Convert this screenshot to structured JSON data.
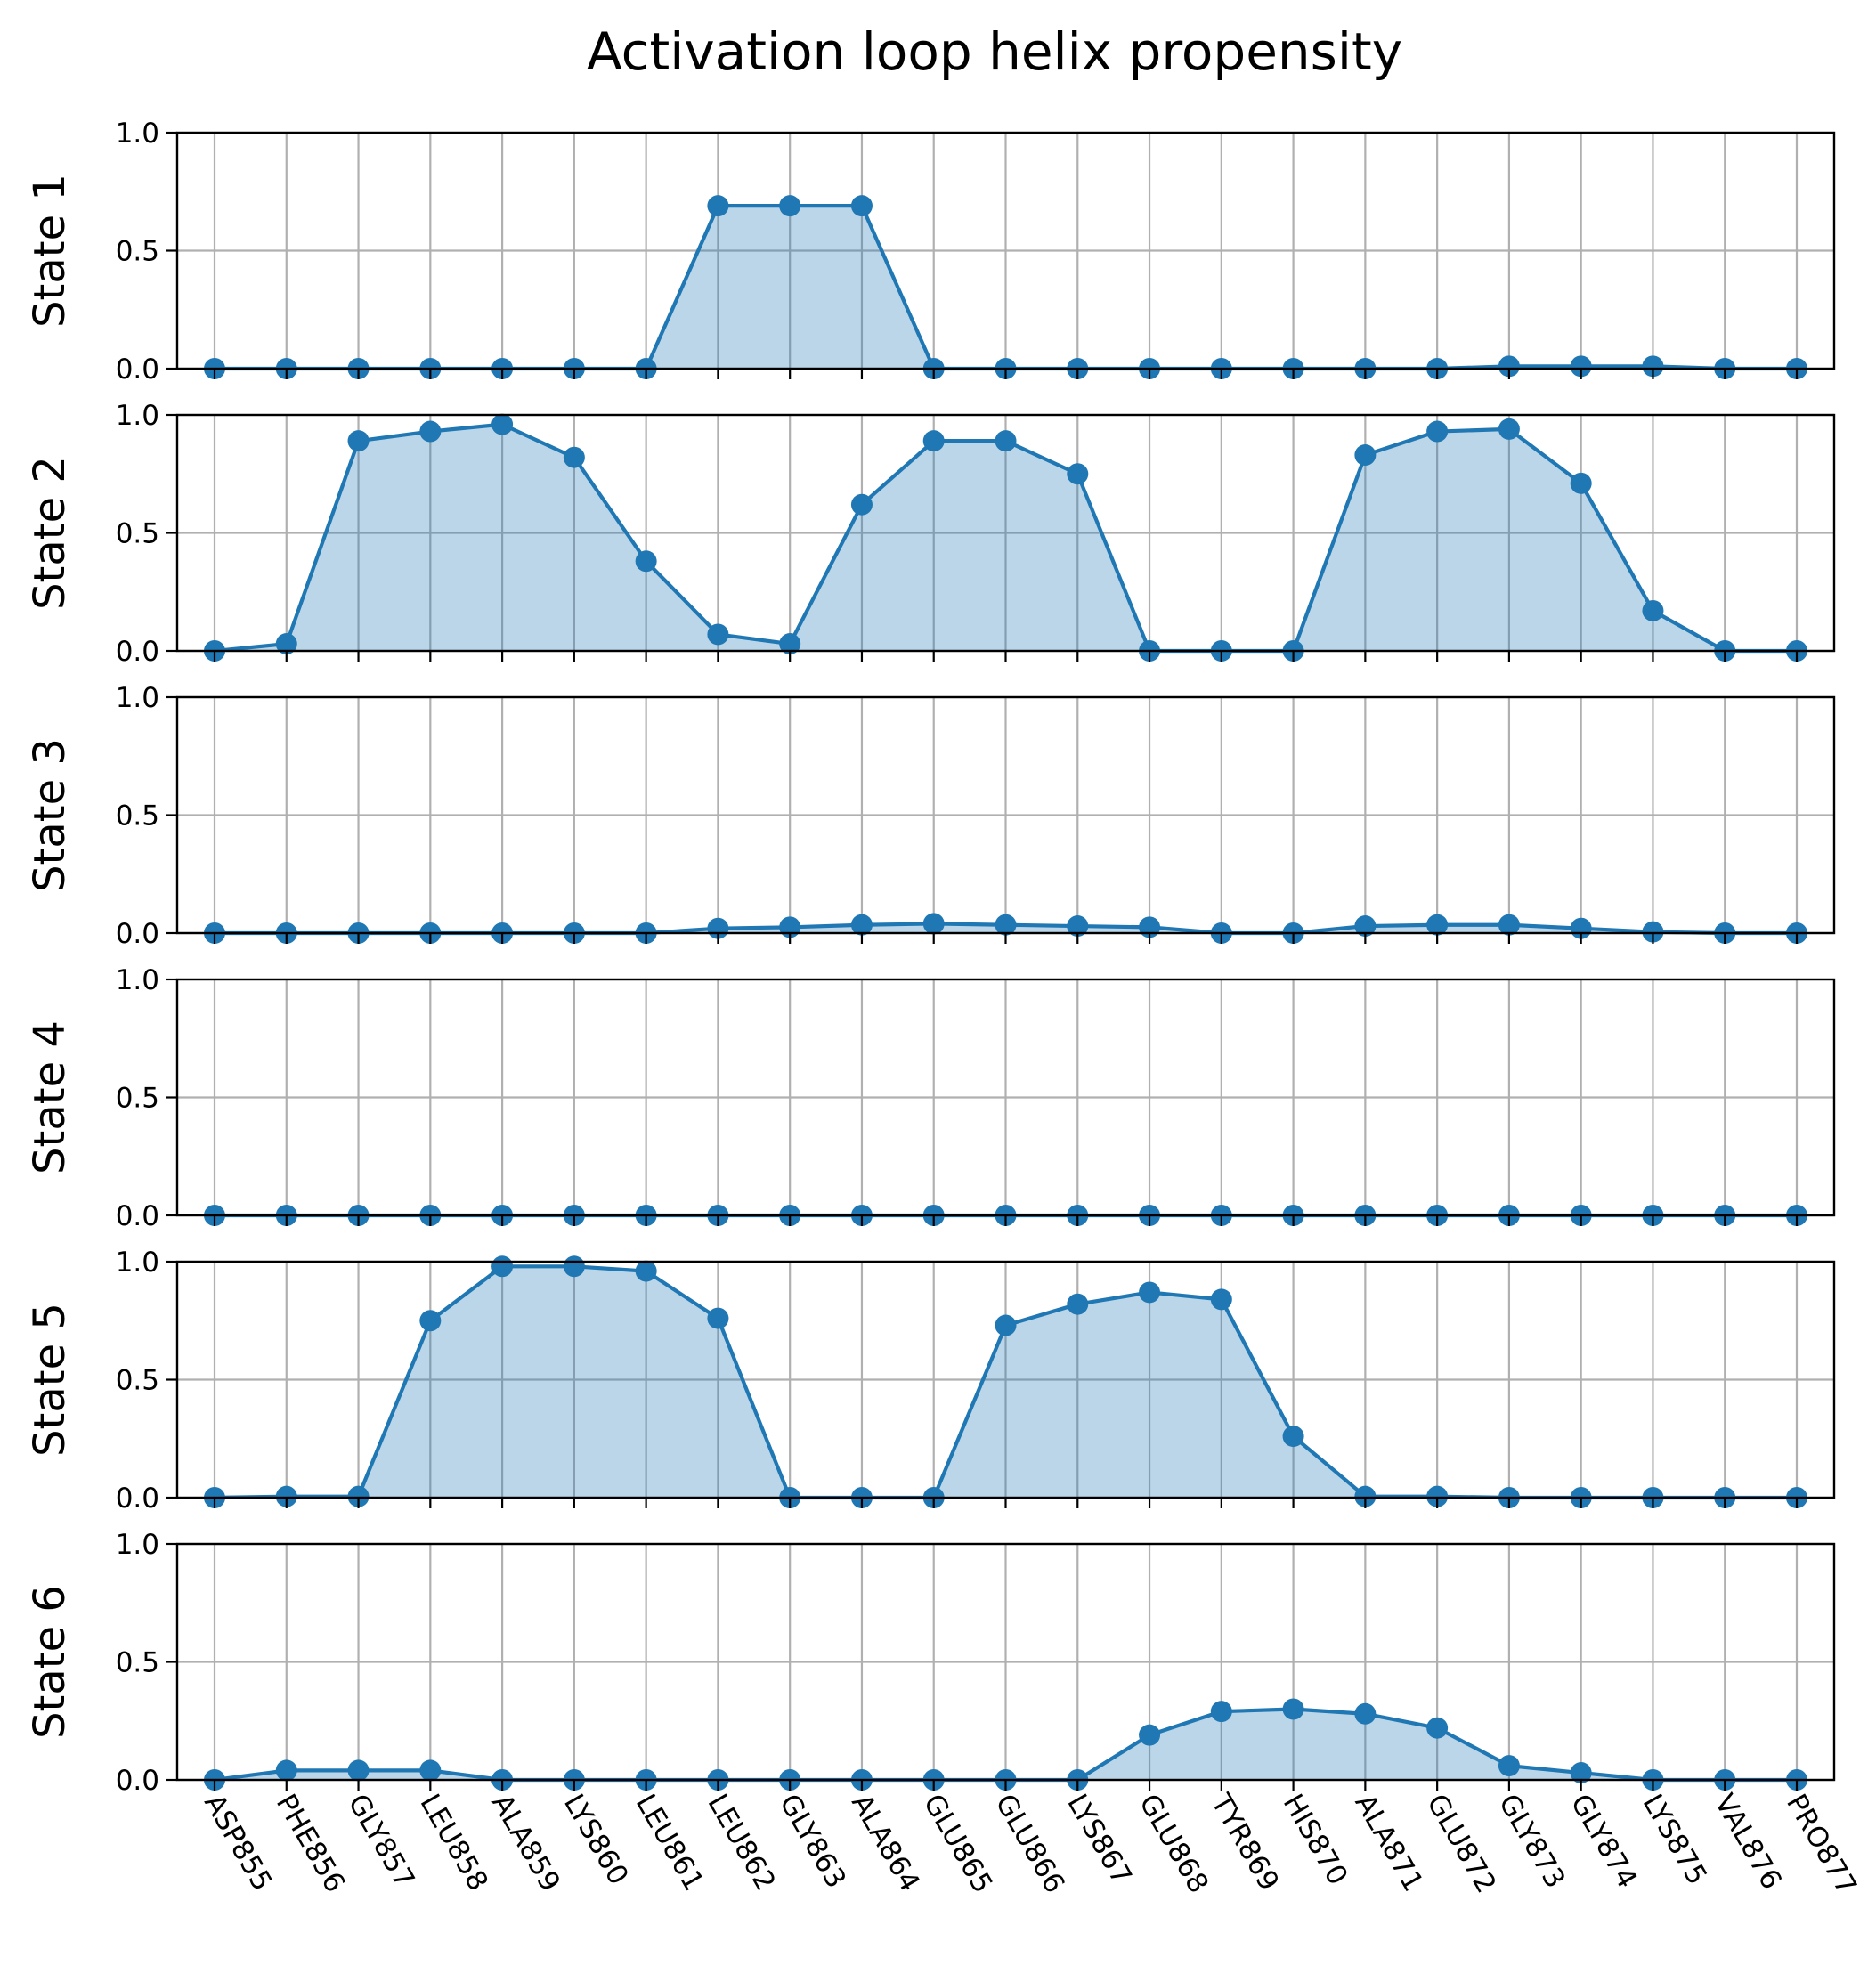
{
  "chart_data": {
    "type": "area",
    "title": "Activation loop helix propensity",
    "xlabel": "",
    "categories": [
      "ASP855",
      "PHE856",
      "GLY857",
      "LEU858",
      "ALA859",
      "LYS860",
      "LEU861",
      "LEU862",
      "GLY863",
      "ALA864",
      "GLU865",
      "GLU866",
      "LYS867",
      "GLU868",
      "TYR869",
      "HIS870",
      "ALA871",
      "GLU872",
      "GLY873",
      "GLY874",
      "LYS875",
      "VAL876",
      "PRO877"
    ],
    "ylim": [
      0,
      1
    ],
    "yticks": [
      "0.0",
      "0.5",
      "1.0"
    ],
    "grid": true,
    "markers": true,
    "colors": {
      "line": "#1f77b4",
      "fill": "#1f77b4",
      "fill_opacity": 0.3
    },
    "series": [
      {
        "ylabel": "State 1",
        "values": [
          0.0,
          0.0,
          0.0,
          0.0,
          0.0,
          0.0,
          0.0,
          0.69,
          0.69,
          0.69,
          0.0,
          0.0,
          0.0,
          0.0,
          0.0,
          0.0,
          0.0,
          0.0,
          0.01,
          0.01,
          0.01,
          0.0,
          0.0
        ]
      },
      {
        "ylabel": "State 2",
        "values": [
          0.0,
          0.03,
          0.89,
          0.93,
          0.96,
          0.82,
          0.38,
          0.07,
          0.03,
          0.62,
          0.89,
          0.89,
          0.75,
          0.0,
          0.0,
          0.0,
          0.83,
          0.93,
          0.94,
          0.71,
          0.17,
          0.0,
          0.0
        ]
      },
      {
        "ylabel": "State 3",
        "values": [
          0.0,
          0.0,
          0.0,
          0.0,
          0.0,
          0.0,
          0.0,
          0.02,
          0.025,
          0.035,
          0.04,
          0.035,
          0.03,
          0.025,
          0.0,
          0.0,
          0.03,
          0.035,
          0.035,
          0.02,
          0.005,
          0.0,
          0.0
        ]
      },
      {
        "ylabel": "State 4",
        "values": [
          0.0,
          0.0,
          0.0,
          0.0,
          0.0,
          0.0,
          0.0,
          0.0,
          0.0,
          0.0,
          0.0,
          0.0,
          0.0,
          0.0,
          0.0,
          0.0,
          0.0,
          0.0,
          0.0,
          0.0,
          0.0,
          0.0,
          0.0
        ]
      },
      {
        "ylabel": "State 5",
        "values": [
          0.0,
          0.005,
          0.005,
          0.75,
          0.98,
          0.98,
          0.96,
          0.76,
          0.0,
          0.0,
          0.0,
          0.73,
          0.82,
          0.87,
          0.84,
          0.26,
          0.005,
          0.005,
          0.0,
          0.0,
          0.0,
          0.0,
          0.0
        ]
      },
      {
        "ylabel": "State 6",
        "values": [
          0.0,
          0.04,
          0.04,
          0.04,
          0.0,
          0.0,
          0.0,
          0.0,
          0.0,
          0.0,
          0.0,
          0.0,
          0.0,
          0.19,
          0.29,
          0.3,
          0.28,
          0.22,
          0.06,
          0.03,
          0.0,
          0.0,
          0.0
        ]
      }
    ]
  }
}
